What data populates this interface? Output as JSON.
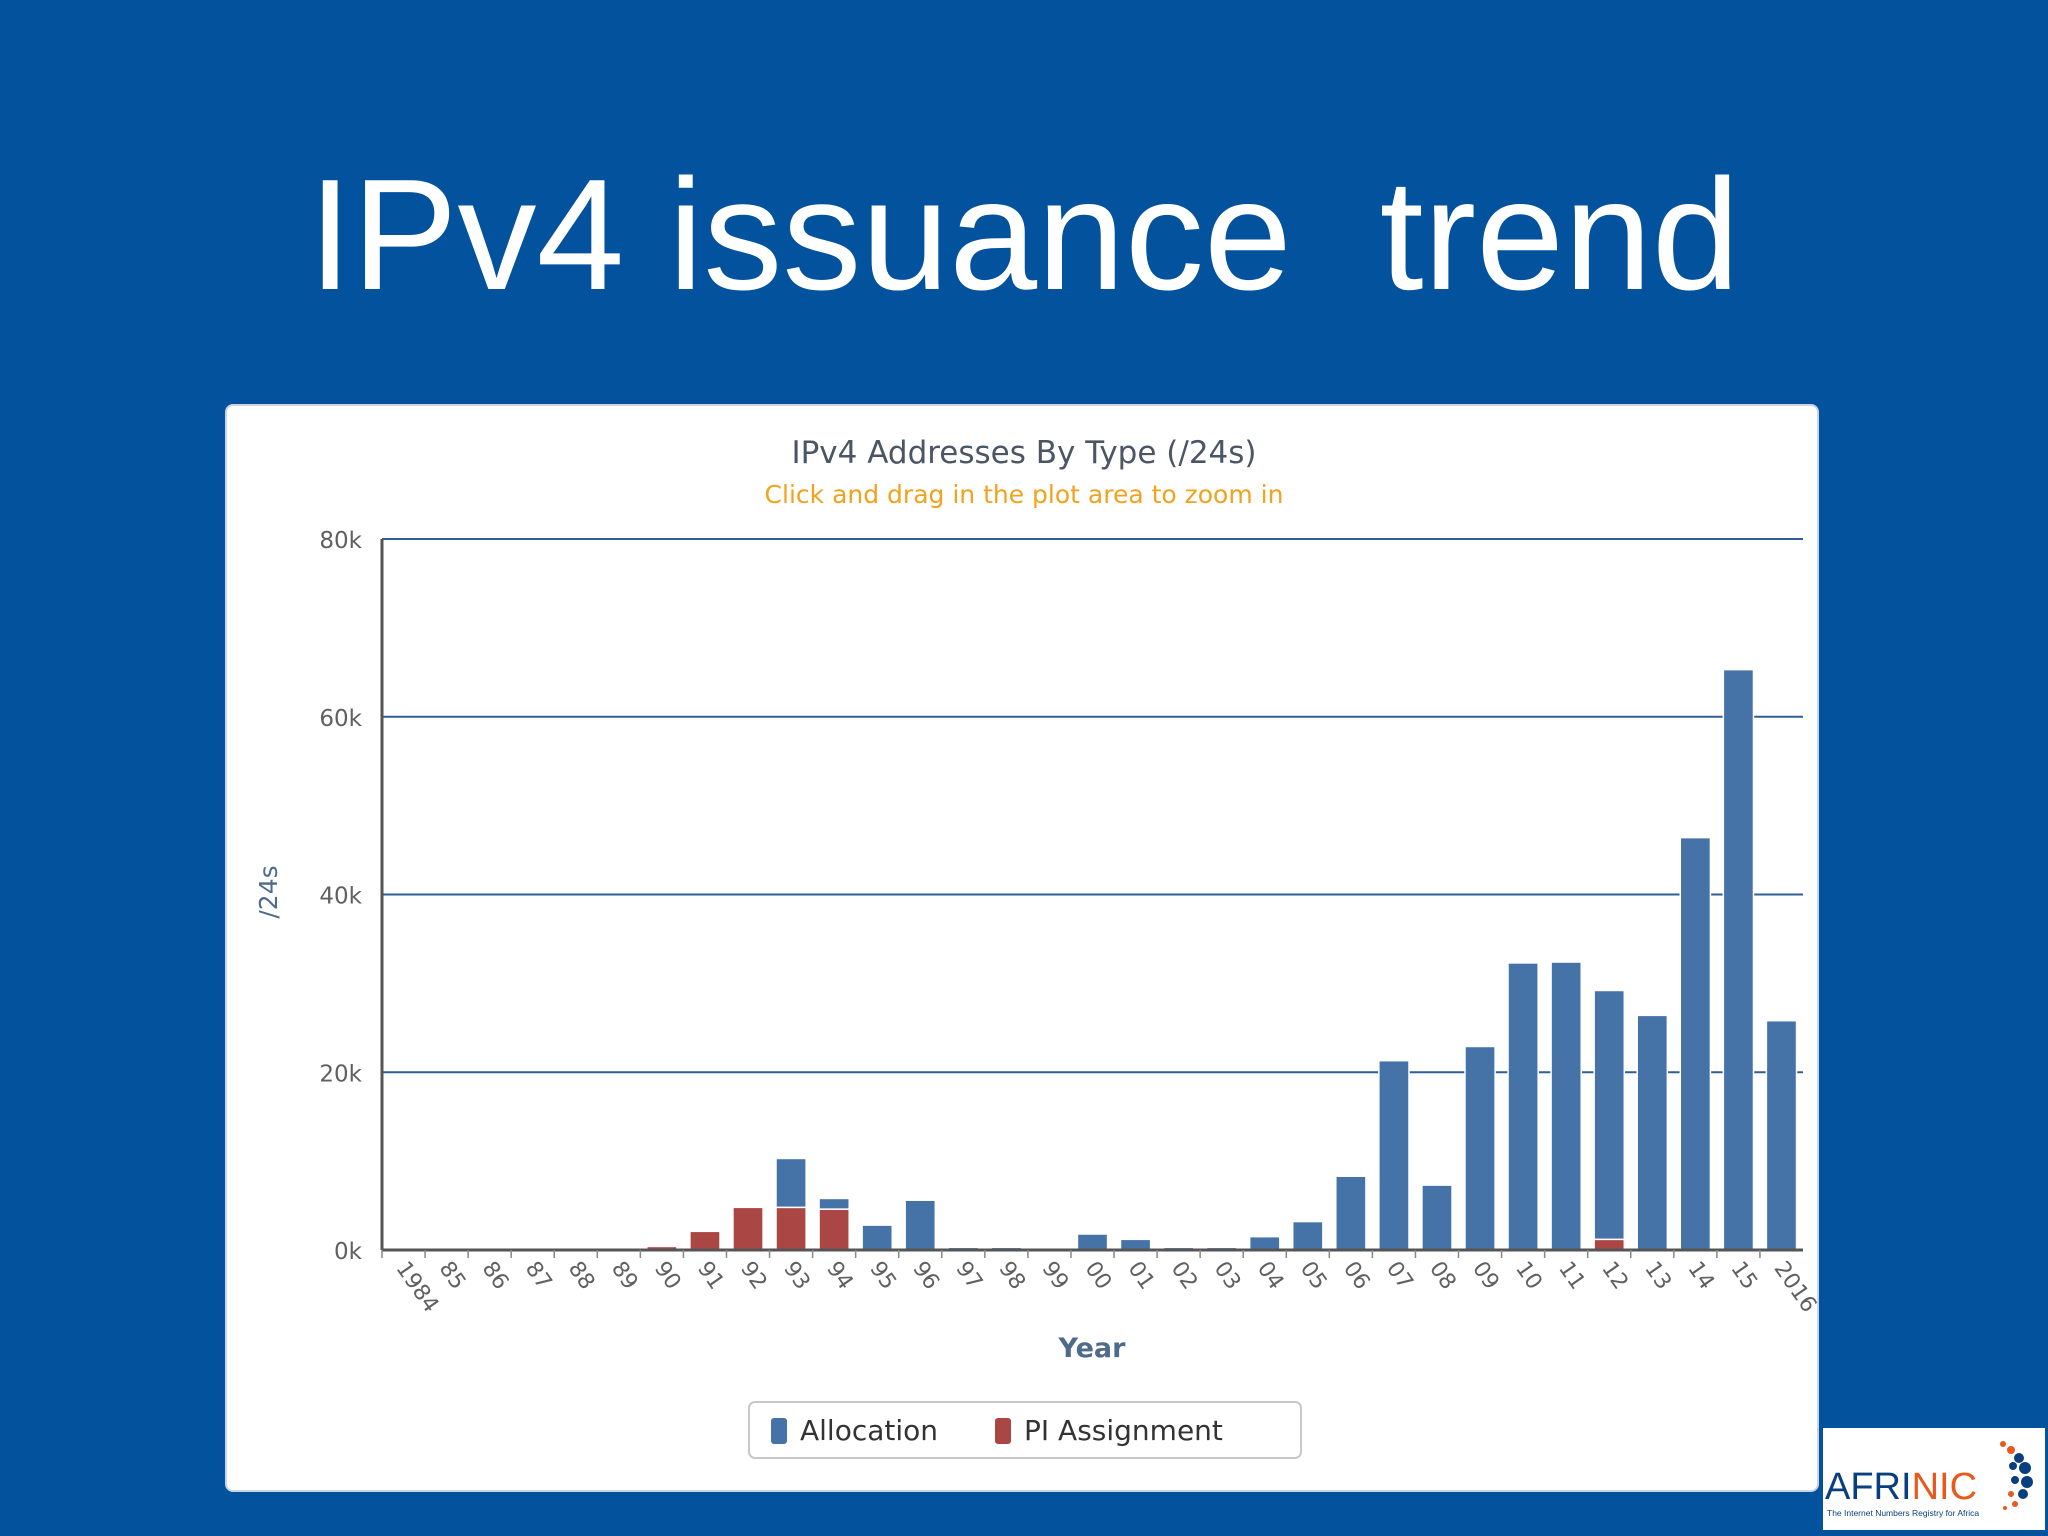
{
  "slide": {
    "title": "IPv4 issuance  trend"
  },
  "logo": {
    "part1": "AFRI",
    "part2": "NIC",
    "tagline": "The Internet Numbers Registry for Africa",
    "colors": {
      "primary": "#0a3f7f",
      "accent": "#e85a1c"
    }
  },
  "chart_data": {
    "type": "bar",
    "stacked": true,
    "title": "IPv4 Addresses By Type (/24s)",
    "subtitle": "Click and drag in the plot area to zoom in",
    "xlabel": "Year",
    "ylabel": "/24s",
    "ylim": [
      0,
      80000
    ],
    "yticks": [
      "0k",
      "20k",
      "40k",
      "60k",
      "80k"
    ],
    "grid": true,
    "legend_position": "bottom-center",
    "categories": [
      "1984",
      "85",
      "86",
      "87",
      "88",
      "89",
      "90",
      "91",
      "92",
      "93",
      "94",
      "95",
      "96",
      "97",
      "98",
      "99",
      "00",
      "01",
      "02",
      "03",
      "04",
      "05",
      "06",
      "07",
      "08",
      "09",
      "10",
      "11",
      "12",
      "13",
      "14",
      "15",
      "2016"
    ],
    "series": [
      {
        "name": "Allocation",
        "color": "#4572a7",
        "values": [
          0,
          0,
          0,
          0,
          0,
          0,
          0,
          0,
          0,
          5500,
          1200,
          2800,
          5600,
          300,
          300,
          0,
          1800,
          1200,
          300,
          300,
          1500,
          3200,
          8300,
          21300,
          7300,
          22900,
          32300,
          32400,
          28000,
          26400,
          46400,
          65300,
          25800
        ]
      },
      {
        "name": "PI Assignment",
        "color": "#aa4643",
        "values": [
          0,
          0,
          0,
          0,
          0,
          0,
          400,
          2100,
          4800,
          4800,
          4600,
          0,
          0,
          0,
          0,
          0,
          0,
          0,
          0,
          0,
          0,
          0,
          0,
          0,
          0,
          0,
          0,
          0,
          1200,
          0,
          0,
          0,
          0
        ]
      }
    ]
  }
}
